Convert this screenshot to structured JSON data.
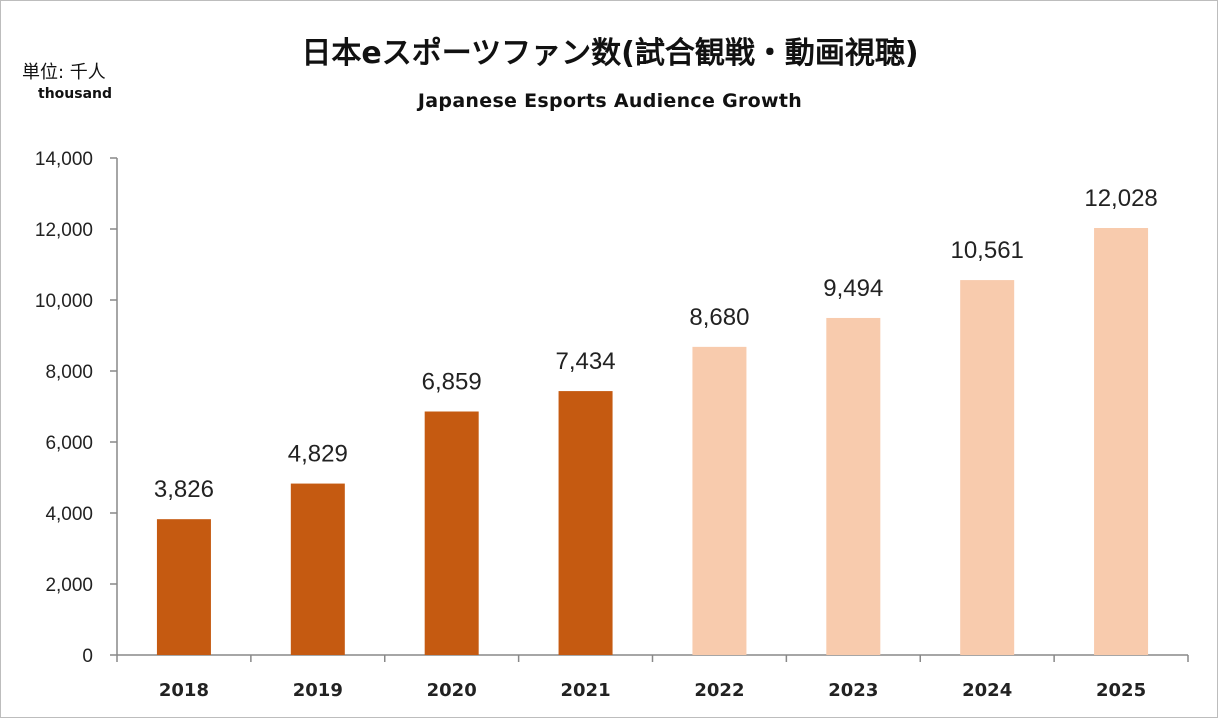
{
  "chart_data": {
    "type": "bar",
    "title": "日本eスポーツファン数(試合観戦・動画視聴)",
    "subtitle": "Japanese Esports Audience Growth",
    "unit_label": "単位: 千人",
    "unit_label_en": "thousand",
    "xlabel": "",
    "ylabel": "",
    "ylim": [
      0,
      14000
    ],
    "yticks": [
      0,
      2000,
      4000,
      6000,
      8000,
      10000,
      12000,
      14000
    ],
    "ytick_labels": [
      "0",
      "2,000",
      "4,000",
      "6,000",
      "8,000",
      "10,000",
      "12,000",
      "14,000"
    ],
    "categories": [
      "2018",
      "2019",
      "2020",
      "2021",
      "2022",
      "2023",
      "2024",
      "2025"
    ],
    "values": [
      3826,
      4829,
      6859,
      7434,
      8680,
      9494,
      10561,
      12028
    ],
    "value_labels": [
      "3,826",
      "4,829",
      "6,859",
      "7,434",
      "8,680",
      "9,494",
      "10,561",
      "12,028"
    ],
    "bar_colors": [
      "#c55a11",
      "#c55a11",
      "#c55a11",
      "#c55a11",
      "#f8cbad",
      "#f8cbad",
      "#f8cbad",
      "#f8cbad"
    ],
    "grid": false,
    "legend": "none"
  }
}
